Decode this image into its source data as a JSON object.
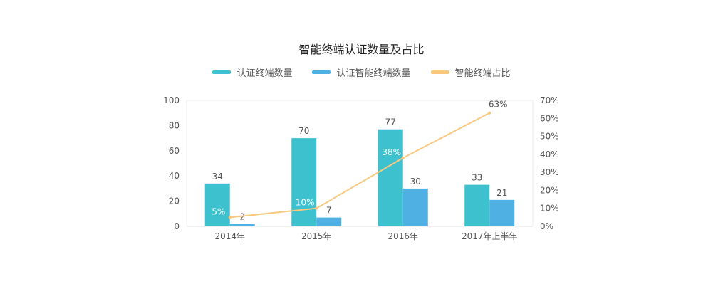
{
  "chart_data": {
    "type": "bar",
    "title": "智能终端认证数量及占比",
    "categories": [
      "2014年",
      "2015年",
      "2016年",
      "2017年上半年"
    ],
    "series": [
      {
        "name": "认证终端数量",
        "type": "bar",
        "axis": "left",
        "color": "#3EC1CE",
        "values": [
          34,
          70,
          77,
          33
        ],
        "labels": [
          "34",
          "70",
          "77",
          "33"
        ]
      },
      {
        "name": "认证智能终端数量",
        "type": "bar",
        "axis": "left",
        "color": "#4FB1E3",
        "values": [
          2,
          7,
          30,
          21
        ],
        "labels": [
          "2",
          "7",
          "30",
          "21"
        ]
      },
      {
        "name": "智能终端占比",
        "type": "line",
        "axis": "right",
        "color": "#F7C97E",
        "values": [
          5,
          10,
          38,
          63
        ],
        "labels": [
          "5%",
          "10%",
          "38%",
          "63%"
        ]
      }
    ],
    "y_left": {
      "min": 0,
      "max": 100,
      "ticks": [
        "0",
        "20",
        "40",
        "60",
        "80",
        "100"
      ]
    },
    "y_right": {
      "min": 0,
      "max": 70,
      "ticks": [
        "0%",
        "10%",
        "20%",
        "30%",
        "40%",
        "50%",
        "60%",
        "70%"
      ]
    },
    "legend_position": "top-center",
    "grid": false
  }
}
